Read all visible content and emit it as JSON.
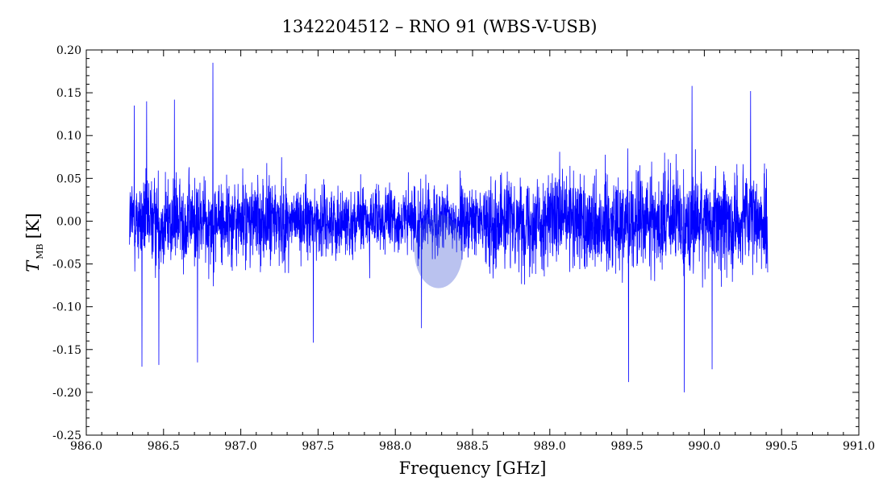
{
  "chart_data": {
    "type": "line",
    "title": "1342204512 – RNO 91 (WBS-V-USB)",
    "xlabel": "Frequency [GHz]",
    "ylabel": {
      "symbol": "T",
      "subscript": "MB",
      "unit": "[K]"
    },
    "xlim": [
      986.0,
      991.0
    ],
    "ylim": [
      -0.25,
      0.2
    ],
    "xticks": [
      "986.0",
      "986.5",
      "987.0",
      "987.5",
      "988.0",
      "988.5",
      "989.0",
      "989.5",
      "990.0",
      "990.5",
      "991.0"
    ],
    "yticks": [
      "0.20",
      "0.15",
      "0.10",
      "0.05",
      "0.00",
      "-0.05",
      "-0.10",
      "-0.15",
      "-0.20",
      "-0.25"
    ],
    "series": [
      {
        "color": "#0000ff",
        "x_range": [
          986.28,
          990.41
        ],
        "baseline": 0.0,
        "envelope_peaks": [
          {
            "x": 986.31,
            "y": 0.135
          },
          {
            "x": 986.36,
            "y": -0.17
          },
          {
            "x": 986.39,
            "y": 0.14
          },
          {
            "x": 986.47,
            "y": -0.168
          },
          {
            "x": 986.57,
            "y": 0.142
          },
          {
            "x": 986.72,
            "y": -0.165
          },
          {
            "x": 986.82,
            "y": 0.185
          },
          {
            "x": 987.47,
            "y": -0.142
          },
          {
            "x": 988.17,
            "y": -0.125
          },
          {
            "x": 989.51,
            "y": -0.188
          },
          {
            "x": 989.87,
            "y": -0.2
          },
          {
            "x": 990.05,
            "y": -0.173
          },
          {
            "x": 989.92,
            "y": 0.158
          },
          {
            "x": 990.3,
            "y": 0.152
          }
        ]
      }
    ],
    "highlight": {
      "x": 988.28,
      "y": -0.035,
      "color": "#3a4fd0"
    },
    "grid": false,
    "legend": "none"
  }
}
